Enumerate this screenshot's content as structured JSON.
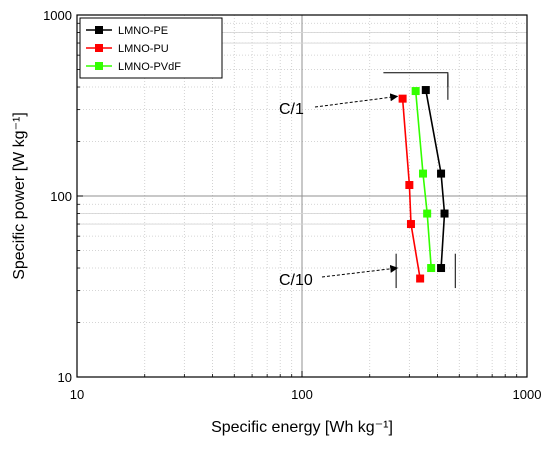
{
  "chart_data": {
    "type": "scatter",
    "title": "",
    "xlabel": "Specific energy [Wh kg⁻¹]",
    "ylabel": "Specific power  [W kg⁻¹]",
    "xscale": "log",
    "yscale": "log",
    "xlim": [
      10,
      1000
    ],
    "ylim": [
      10,
      1000
    ],
    "x_ticks": [
      10,
      100,
      1000
    ],
    "x_tick_labels": [
      "10",
      "100",
      "1000"
    ],
    "y_ticks": [
      10,
      100,
      1000
    ],
    "y_tick_labels": [
      "10",
      "100",
      "1000"
    ],
    "grid": true,
    "legend_position": "top-left",
    "series": [
      {
        "name": "LMNO-PE",
        "color": "#000000",
        "x": [
          355,
          415,
          430,
          415
        ],
        "y": [
          385,
          133,
          80,
          40
        ]
      },
      {
        "name": "LMNO-PU",
        "color": "#ff0000",
        "x": [
          280,
          300,
          305,
          335
        ],
        "y": [
          345,
          115,
          70,
          35
        ]
      },
      {
        "name": "LMNO-PVdF",
        "color": "#33ff00",
        "x": [
          320,
          345,
          360,
          375
        ],
        "y": [
          380,
          133,
          80,
          40
        ]
      }
    ],
    "annotations": [
      {
        "text": "C/1",
        "arrow_to": [
          265,
          355
        ]
      },
      {
        "text": "C/10",
        "arrow_to": [
          265,
          40
        ]
      }
    ]
  }
}
